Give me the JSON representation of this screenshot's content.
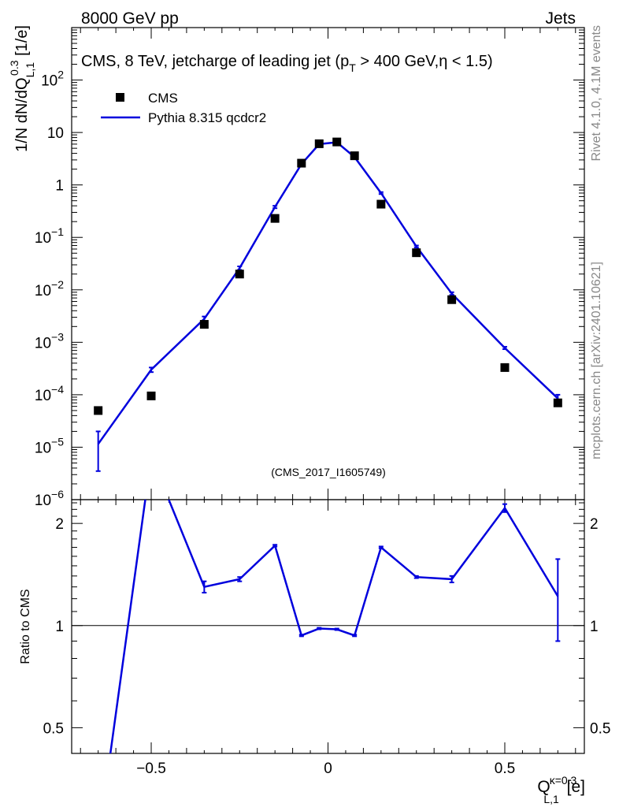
{
  "header": {
    "left": "8000 GeV pp",
    "right": "Jets"
  },
  "side_labels": {
    "rivet": "Rivet 4.1.0,  4.1M events",
    "mcplots": "mcplots.cern.ch [arXiv:2401.10621]"
  },
  "watermark": "(CMS_2017_I1605749)",
  "chart_data": [
    {
      "type": "scatter",
      "role": "main",
      "title": "CMS, 8 TeV, jetcharge of leading jet (p_T > 400 GeV, η < 1.5)",
      "title_parts": {
        "pre": "CMS, 8 TeV, jetcharge of leading jet (p",
        "sub": "T",
        "post": " > 400 GeV,η < 1.5)"
      },
      "ylabel": "1/N dN/dQ_{L,1}^{0.3} [1/e]",
      "ylabel_parts": {
        "pre": "1/N dN/dQ",
        "sub": "L,1",
        "sup": "0.3",
        "post": " [1/e]"
      },
      "yscale": "log",
      "xlim": [
        -0.725,
        0.725
      ],
      "ylim": [
        1e-06,
        1000
      ],
      "ytick_values": [
        1e-06,
        1e-05,
        0.0001,
        0.001,
        0.01,
        0.1,
        1,
        10,
        100
      ],
      "ytick_labels": [
        {
          "base": "10",
          "exp": "−6"
        },
        {
          "base": "10",
          "exp": "−5"
        },
        {
          "base": "10",
          "exp": "−4"
        },
        {
          "base": "10",
          "exp": "−3"
        },
        {
          "base": "10",
          "exp": "−2"
        },
        {
          "base": "10",
          "exp": "−1"
        },
        {
          "base": "1",
          "exp": ""
        },
        {
          "base": "10",
          "exp": ""
        },
        {
          "base": "10",
          "exp": "2"
        }
      ],
      "legend": {
        "position": "top-left",
        "entries": [
          {
            "label": "CMS",
            "marker": "square"
          },
          {
            "label": "Pythia 8.315 qcdcr2",
            "marker": "line"
          }
        ]
      },
      "series": [
        {
          "name": "CMS",
          "color": "#000000",
          "x": [
            -0.65,
            -0.5,
            -0.35,
            -0.25,
            -0.15,
            -0.075,
            -0.025,
            0.025,
            0.075,
            0.15,
            0.25,
            0.35,
            0.5,
            0.65
          ],
          "y": [
            5e-05,
            9.5e-05,
            0.0022,
            0.02,
            0.23,
            2.6,
            6.1,
            6.6,
            3.6,
            0.43,
            0.051,
            0.0065,
            0.00033,
            7e-05
          ]
        },
        {
          "name": "Pythia 8.315 qcdcr2",
          "color": "#0000dd",
          "x": [
            -0.65,
            -0.5,
            -0.35,
            -0.25,
            -0.15,
            -0.075,
            -0.025,
            0.025,
            0.075,
            0.15,
            0.25,
            0.35,
            0.5,
            0.65
          ],
          "y": [
            1.15e-05,
            0.0003,
            0.0028,
            0.026,
            0.38,
            2.5,
            6.0,
            6.5,
            3.4,
            0.7,
            0.067,
            0.0085,
            0.00078,
            8.5e-05
          ],
          "err_low": [
            3.5e-06,
            0.00027,
            0.0025,
            0.024,
            0.36,
            2.45,
            5.9,
            6.4,
            3.35,
            0.67,
            0.064,
            0.008,
            0.00074,
            6.8e-05
          ],
          "err_high": [
            2e-05,
            0.00033,
            0.0031,
            0.028,
            0.4,
            2.55,
            6.1,
            6.6,
            3.45,
            0.73,
            0.07,
            0.009,
            0.00082,
            0.0001
          ]
        }
      ]
    },
    {
      "type": "line",
      "role": "ratio",
      "ylabel": "Ratio to CMS",
      "xlabel": "Q_{L,1}^{κ=0.3} [e]",
      "xlabel_parts": {
        "pre": "Q",
        "sub": "L,1",
        "sup": "κ=0.3",
        "post": " [e]"
      },
      "yscale": "log",
      "xlim": [
        -0.725,
        0.725
      ],
      "ylim": [
        0.42,
        2.35
      ],
      "ytick_values": [
        0.5,
        1,
        2
      ],
      "ytick_labels": [
        "0.5",
        "1",
        "2"
      ],
      "xtick_values": [
        -0.5,
        0,
        0.5
      ],
      "xtick_labels": [
        "−0.5",
        "0",
        "0.5"
      ],
      "reference_line": 1,
      "series": [
        {
          "name": "Pythia 8.315 qcdcr2 / CMS",
          "color": "#0000dd",
          "x": [
            -0.65,
            -0.5,
            -0.35,
            -0.25,
            -0.15,
            -0.075,
            -0.025,
            0.025,
            0.075,
            0.15,
            0.25,
            0.35,
            0.5,
            0.65
          ],
          "y": [
            0.23,
            3.15,
            1.3,
            1.37,
            1.72,
            0.935,
            0.98,
            0.975,
            0.935,
            1.7,
            1.39,
            1.37,
            2.22,
            1.22
          ],
          "err_low": [
            null,
            null,
            1.25,
            1.35,
            1.71,
            0.93,
            0.975,
            0.97,
            0.93,
            1.69,
            1.38,
            1.34,
            2.16,
            0.9
          ],
          "err_high": [
            null,
            null,
            1.35,
            1.39,
            1.73,
            0.94,
            0.985,
            0.98,
            0.94,
            1.71,
            1.4,
            1.4,
            2.28,
            1.57
          ]
        }
      ]
    }
  ]
}
